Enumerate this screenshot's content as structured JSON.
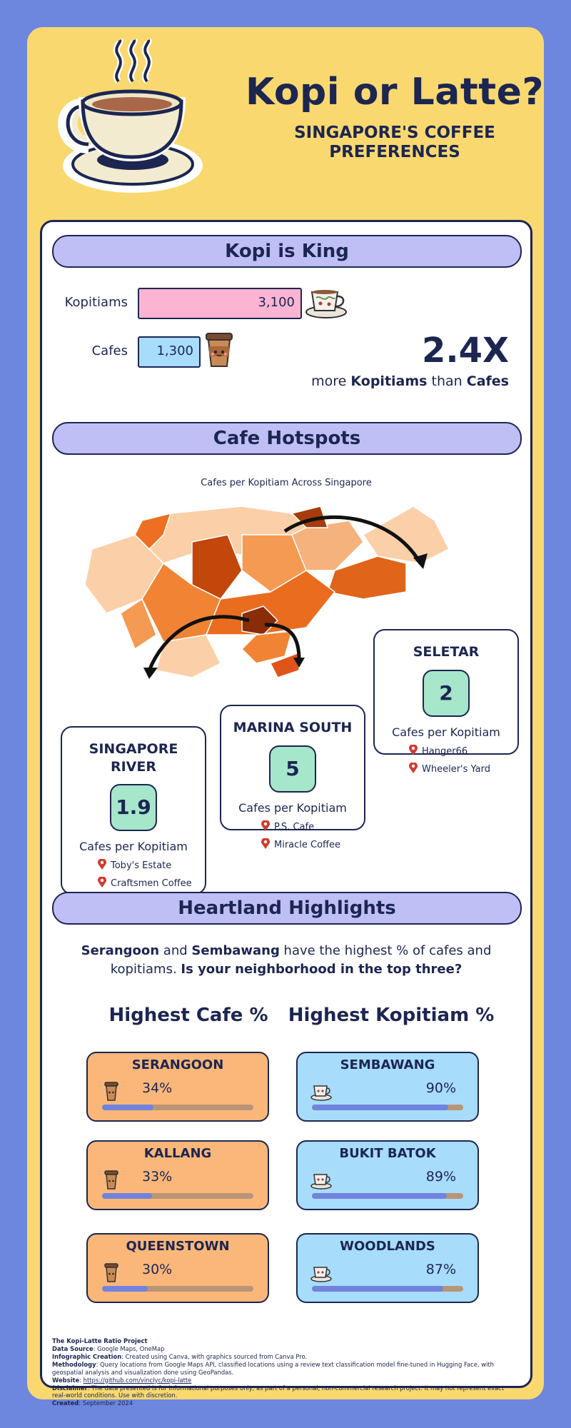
{
  "header": {
    "title": "Kopi or Latte?",
    "subtitle_line1": "SINGAPORE'S COFFEE",
    "subtitle_line2": "PREFERENCES"
  },
  "kopi_is_king": {
    "banner": "Kopi is King",
    "kopitiams_label": "Kopitiams",
    "kopitiams_value": "3,100",
    "cafes_label": "Cafes",
    "cafes_value": "1,300",
    "ratio": "2.4X",
    "ratio_pre": "more",
    "ratio_bold1": "Kopitiams",
    "ratio_mid": "than",
    "ratio_bold2": "Cafes"
  },
  "hotspots": {
    "banner": "Cafe Hotspots",
    "map_title": "Cafes per Kopitiam Across Singapore",
    "callouts": [
      {
        "name": "SELETAR",
        "value": "2",
        "unit": "Cafes per Kopitiam",
        "places": [
          "Hanger66",
          "Wheeler's Yard"
        ]
      },
      {
        "name": "MARINA SOUTH",
        "value": "5",
        "unit": "Cafes per Kopitiam",
        "places": [
          "P.S. Cafe",
          "Miracle Coffee"
        ]
      },
      {
        "name": "SINGAPORE RIVER",
        "value": "1.9",
        "unit": "Cafes per Kopitiam",
        "places": [
          "Toby's Estate",
          "Craftsmen Coffee"
        ]
      }
    ]
  },
  "heartland": {
    "banner": "Heartland Highlights",
    "t1": "Serangoon",
    "t2": " and ",
    "t3": "Sembawang",
    "t4": " have the highest % of cafes and kopitiams. ",
    "t5": "Is your neighborhood in the top three?",
    "cafe_heading": "Highest Cafe %",
    "kopi_heading": "Highest Kopitiam %",
    "cafe": [
      {
        "name": "SERANGOON",
        "pct": "34%",
        "level": 0.34
      },
      {
        "name": "KALLANG",
        "pct": "33%",
        "level": 0.33
      },
      {
        "name": "QUEENSTOWN",
        "pct": "30%",
        "level": 0.3
      }
    ],
    "kopi": [
      {
        "name": "SEMBAWANG",
        "pct": "90%",
        "level": 0.9
      },
      {
        "name": "BUKIT BATOK",
        "pct": "89%",
        "level": 0.89
      },
      {
        "name": "WOODLANDS",
        "pct": "87%",
        "level": 0.87
      }
    ]
  },
  "footer": {
    "project": "The Kopi-Latte Ratio Project",
    "source_label": "Data Source",
    "source": ": Google Maps, OneMap",
    "creation_label": "Infographic Creation",
    "creation": ": Created using Canva, with graphics sourced from Canva Pro.",
    "method_label": "Methodology",
    "method": ": Query locations from Google Maps API, classified locations using a review text classification model fine-tuned in Hugging Face, with geospatial analysis and visualization done using GeoPandas.",
    "website_label": "Website",
    "website": "https://github.com/vinclyc/kopi-latte",
    "disclaimer_label": "Disclaimer",
    "disclaimer": ": The data presented is for informational purposes only, as part of a personal, non-commercial research project. It may not represent exact real-world conditions. Use with discretion.",
    "created_label": "Created",
    "created": ": September 2024"
  },
  "colors": {
    "navy": "#1c2651",
    "poster_bg": "#f9d870",
    "outer_bg": "#6d86de",
    "banner": "#bfbff6",
    "kopitiam_bar": "#fcb4d2",
    "cafe_bar": "#a7dcfa",
    "value_box": "#a6e6ca",
    "cafe_card": "#fbb77a",
    "kopi_card": "#a7dcfa",
    "bar_fill": "#7183de",
    "bar_track": "#b99578"
  }
}
